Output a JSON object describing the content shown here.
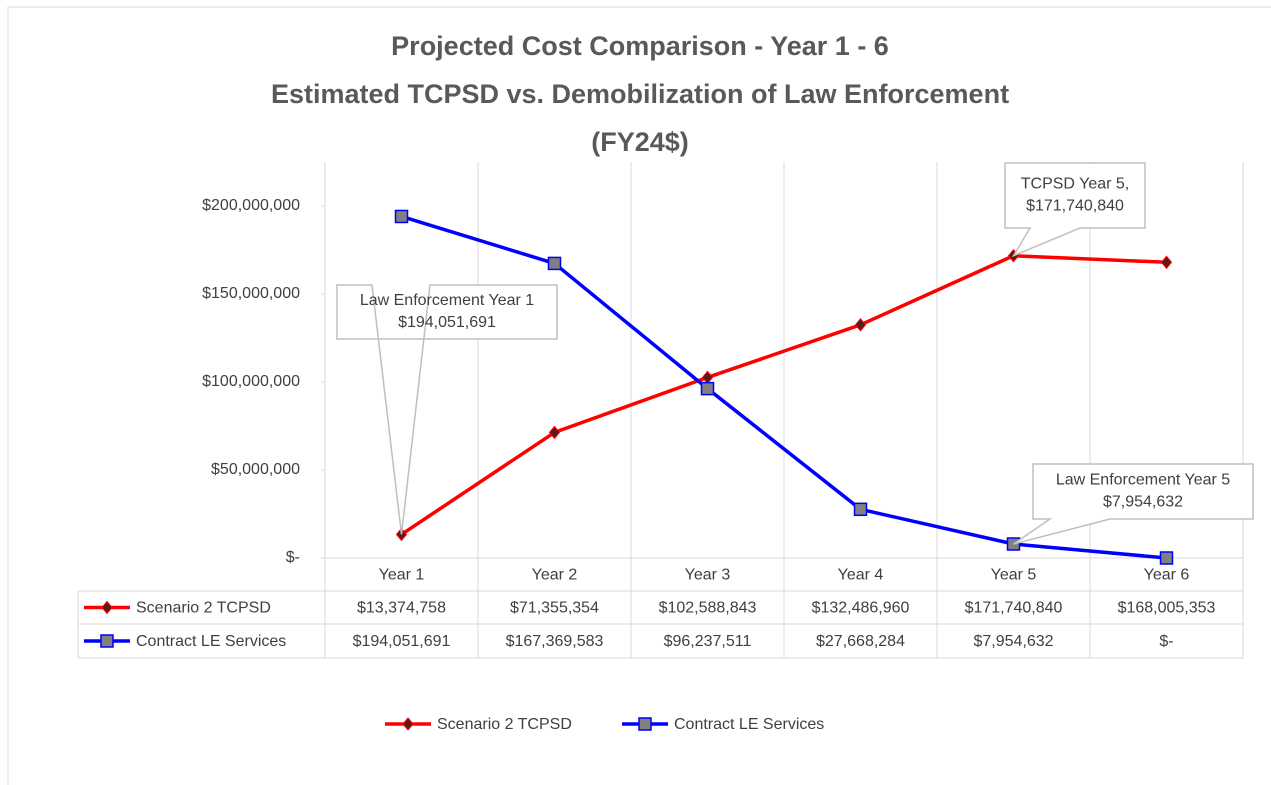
{
  "chart_data": {
    "type": "line",
    "title": [
      "Projected Cost Comparison - Year 1 - 6",
      "Estimated TCPSD vs. Demobilization of Law Enforcement",
      "(FY24$)"
    ],
    "categories": [
      "Year 1",
      "Year 2",
      "Year 3",
      "Year 4",
      "Year 5",
      "Year 6"
    ],
    "series": [
      {
        "name": "Scenario 2 TCPSD",
        "color": "#ff0000",
        "marker": "diamond",
        "marker_color": "#5a1a1a",
        "values": [
          13374758,
          71355354,
          102588843,
          132486960,
          171740840,
          168005353
        ],
        "value_labels": [
          "$13,374,758",
          "$71,355,354",
          "$102,588,843",
          "$132,486,960",
          "$171,740,840",
          "$168,005,353"
        ]
      },
      {
        "name": "Contract LE Services",
        "color": "#0000ff",
        "marker": "square",
        "marker_color": "#808080",
        "values": [
          194051691,
          167369583,
          96237511,
          27668284,
          7954632,
          0
        ],
        "value_labels": [
          "$194,051,691",
          "$167,369,583",
          "$96,237,511",
          "$27,668,284",
          "$7,954,632",
          "$-"
        ]
      }
    ],
    "ylim": [
      0,
      225000000
    ],
    "yticks": [
      {
        "value": 0,
        "label": "$-"
      },
      {
        "value": 50000000,
        "label": "$50,000,000"
      },
      {
        "value": 100000000,
        "label": "$100,000,000"
      },
      {
        "value": 150000000,
        "label": "$150,000,000"
      },
      {
        "value": 200000000,
        "label": "$200,000,000"
      }
    ],
    "grid": false,
    "legend": "bottom",
    "data_table": true,
    "annotations": [
      {
        "text": [
          "Law Enforcement Year 1",
          "$194,051,691"
        ]
      },
      {
        "text": [
          "TCPSD Year 5,",
          "$171,740,840"
        ]
      },
      {
        "text": [
          "Law Enforcement Year 5",
          "$7,954,632"
        ]
      }
    ]
  }
}
